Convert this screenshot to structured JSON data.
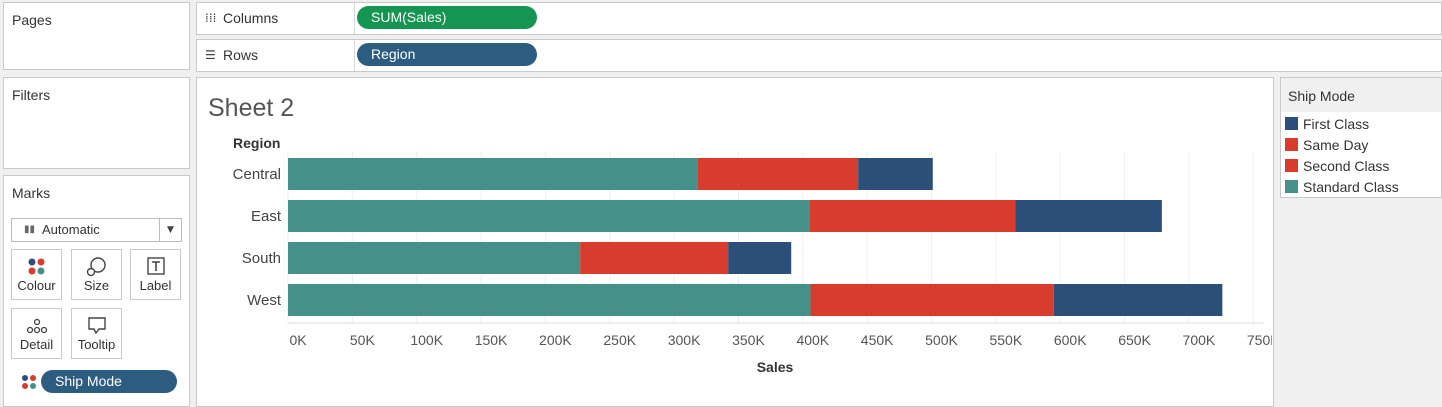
{
  "cards": {
    "pages": "Pages",
    "filters": "Filters",
    "marks": "Marks"
  },
  "shelves": {
    "columns": {
      "label": "Columns",
      "icon": "columns-icon",
      "pill": "SUM(Sales)"
    },
    "rows": {
      "label": "Rows",
      "icon": "rows-icon",
      "pill": "Region"
    }
  },
  "marks": {
    "mark_type": "Automatic",
    "buttons": [
      {
        "label": "Colour",
        "icon": "colour-icon"
      },
      {
        "label": "Size",
        "icon": "size-icon"
      },
      {
        "label": "Label",
        "icon": "label-icon"
      },
      {
        "label": "Detail",
        "icon": "detail-icon"
      },
      {
        "label": "Tooltip",
        "icon": "tooltip-icon"
      }
    ],
    "colour_field": "Ship Mode"
  },
  "legend": {
    "title": "Ship Mode",
    "items": [
      {
        "label": "First Class",
        "color": "#2c4f79"
      },
      {
        "label": "Same Day",
        "color": "#d83c2d"
      },
      {
        "label": "Second Class",
        "color": "#d83c2d"
      },
      {
        "label": "Standard Class",
        "color": "#46908a"
      }
    ]
  },
  "sheet_title": "Sheet 2",
  "chart_data": {
    "type": "bar",
    "orientation": "horizontal",
    "stacked": true,
    "ylabel": "Region",
    "xlabel": "Sales",
    "categories": [
      "Central",
      "East",
      "South",
      "West"
    ],
    "series": [
      {
        "name": "Standard Class",
        "color": "#46908a",
        "values": [
          318000,
          405000,
          227000,
          406000
        ]
      },
      {
        "name": "Second Class",
        "color": "#d83c2d",
        "values": [
          125000,
          160000,
          115000,
          189000
        ]
      },
      {
        "name": "First Class",
        "color": "#2c4f79",
        "values": [
          58000,
          114000,
          49000,
          131000
        ]
      }
    ],
    "xticks": [
      "0K",
      "50K",
      "100K",
      "150K",
      "200K",
      "250K",
      "300K",
      "350K",
      "400K",
      "450K",
      "500K",
      "550K",
      "600K",
      "650K",
      "700K",
      "750K"
    ],
    "xlim": [
      0,
      760000
    ],
    "grid": "vertical",
    "legend": "right"
  }
}
